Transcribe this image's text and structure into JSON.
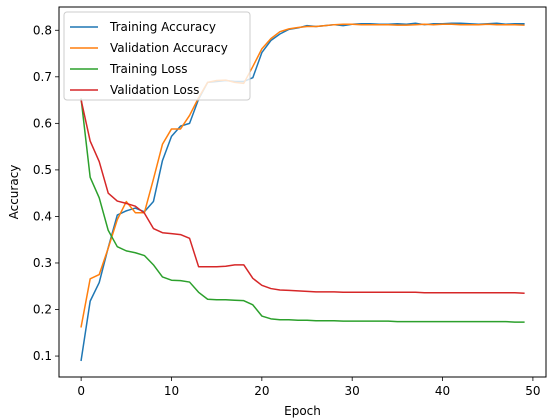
{
  "chart_data": {
    "type": "line",
    "xlabel": "Epoch",
    "ylabel": "Accuracy",
    "xlim": [
      -2.45,
      51.45
    ],
    "ylim": [
      0.055,
      0.85
    ],
    "xticks": [
      0,
      10,
      20,
      30,
      40,
      50
    ],
    "yticks": [
      0.1,
      0.2,
      0.3,
      0.4,
      0.5,
      0.6,
      0.7,
      0.8
    ],
    "xtick_labels": [
      "0",
      "10",
      "20",
      "30",
      "40",
      "50"
    ],
    "ytick_labels": [
      "0.1",
      "0.2",
      "0.3",
      "0.4",
      "0.5",
      "0.6",
      "0.7",
      "0.8"
    ],
    "grid": false,
    "legend_position": "top-left",
    "x": [
      0,
      1,
      2,
      3,
      4,
      5,
      6,
      7,
      8,
      9,
      10,
      11,
      12,
      13,
      14,
      15,
      16,
      17,
      18,
      19,
      20,
      21,
      22,
      23,
      24,
      25,
      26,
      27,
      28,
      29,
      30,
      31,
      32,
      33,
      34,
      35,
      36,
      37,
      38,
      39,
      40,
      41,
      42,
      43,
      44,
      45,
      46,
      47,
      48,
      49
    ],
    "series": [
      {
        "name": "Training Accuracy",
        "color": "#1f77b4",
        "values": [
          0.091,
          0.218,
          0.258,
          0.333,
          0.403,
          0.412,
          0.418,
          0.41,
          0.432,
          0.52,
          0.572,
          0.594,
          0.6,
          0.652,
          0.688,
          0.69,
          0.692,
          0.69,
          0.69,
          0.698,
          0.752,
          0.778,
          0.792,
          0.802,
          0.805,
          0.81,
          0.808,
          0.81,
          0.812,
          0.81,
          0.813,
          0.814,
          0.814,
          0.813,
          0.813,
          0.814,
          0.813,
          0.815,
          0.812,
          0.814,
          0.814,
          0.815,
          0.815,
          0.814,
          0.813,
          0.814,
          0.815,
          0.813,
          0.814,
          0.814
        ]
      },
      {
        "name": "Validation Accuracy",
        "color": "#ff7f0e",
        "values": [
          0.163,
          0.266,
          0.275,
          0.332,
          0.393,
          0.432,
          0.408,
          0.408,
          0.48,
          0.555,
          0.588,
          0.588,
          0.617,
          0.655,
          0.688,
          0.692,
          0.693,
          0.688,
          0.686,
          0.722,
          0.76,
          0.782,
          0.797,
          0.803,
          0.806,
          0.808,
          0.808,
          0.81,
          0.812,
          0.813,
          0.813,
          0.812,
          0.812,
          0.812,
          0.812,
          0.811,
          0.811,
          0.812,
          0.813,
          0.812,
          0.813,
          0.813,
          0.812,
          0.812,
          0.812,
          0.813,
          0.812,
          0.812,
          0.812,
          0.811
        ]
      },
      {
        "name": "Training Loss",
        "color": "#2ca02c",
        "values": [
          0.652,
          0.484,
          0.44,
          0.37,
          0.335,
          0.326,
          0.322,
          0.316,
          0.296,
          0.27,
          0.263,
          0.262,
          0.259,
          0.237,
          0.222,
          0.221,
          0.221,
          0.22,
          0.219,
          0.21,
          0.186,
          0.18,
          0.178,
          0.178,
          0.177,
          0.177,
          0.176,
          0.176,
          0.176,
          0.175,
          0.175,
          0.175,
          0.175,
          0.175,
          0.175,
          0.174,
          0.174,
          0.174,
          0.174,
          0.174,
          0.174,
          0.174,
          0.174,
          0.174,
          0.174,
          0.174,
          0.174,
          0.174,
          0.173,
          0.173
        ]
      },
      {
        "name": "Validation Loss",
        "color": "#d62728",
        "values": [
          0.65,
          0.562,
          0.518,
          0.45,
          0.433,
          0.428,
          0.422,
          0.407,
          0.374,
          0.365,
          0.363,
          0.361,
          0.353,
          0.292,
          0.292,
          0.292,
          0.293,
          0.296,
          0.296,
          0.267,
          0.252,
          0.245,
          0.242,
          0.241,
          0.24,
          0.239,
          0.238,
          0.238,
          0.238,
          0.237,
          0.237,
          0.237,
          0.237,
          0.237,
          0.237,
          0.237,
          0.237,
          0.237,
          0.236,
          0.236,
          0.236,
          0.236,
          0.236,
          0.236,
          0.236,
          0.236,
          0.236,
          0.236,
          0.236,
          0.235
        ]
      }
    ]
  }
}
